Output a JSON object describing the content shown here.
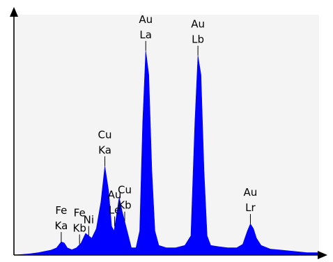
{
  "chart_data": {
    "type": "area",
    "title": "",
    "xlabel": "",
    "ylabel": "",
    "grid": false,
    "xlim": [
      0,
      100
    ],
    "ylim": [
      0,
      100
    ],
    "colors": {
      "plot_background": "#f4f4f4",
      "fill": "#0000ff",
      "axis": "#000000"
    },
    "series": [
      {
        "values": [
          [
            0,
            0
          ],
          [
            3,
            0.3
          ],
          [
            5,
            0.5
          ],
          [
            8,
            1
          ],
          [
            10,
            1.5
          ],
          [
            12,
            2
          ],
          [
            14,
            3
          ],
          [
            15.5,
            5.5
          ],
          [
            16.5,
            5
          ],
          [
            17.5,
            3
          ],
          [
            19,
            2.2
          ],
          [
            20.5,
            3
          ],
          [
            22,
            5
          ],
          [
            23.5,
            9
          ],
          [
            24.5,
            8
          ],
          [
            25.5,
            7
          ],
          [
            27,
            11
          ],
          [
            28.5,
            22
          ],
          [
            29.8,
            37
          ],
          [
            31,
            27
          ],
          [
            32,
            12
          ],
          [
            32.8,
            10
          ],
          [
            33.8,
            18
          ],
          [
            34.5,
            24
          ],
          [
            35.5,
            18
          ],
          [
            36.5,
            13
          ],
          [
            37.5,
            8
          ],
          [
            38.5,
            3
          ],
          [
            40,
            3
          ],
          [
            41.2,
            10
          ],
          [
            42.2,
            55
          ],
          [
            43.2,
            85
          ],
          [
            44.2,
            75
          ],
          [
            45.2,
            35
          ],
          [
            46.2,
            10
          ],
          [
            47.5,
            4
          ],
          [
            50,
            3
          ],
          [
            53,
            3
          ],
          [
            56,
            4
          ],
          [
            58,
            8
          ],
          [
            59.3,
            55
          ],
          [
            60.3,
            83
          ],
          [
            61.3,
            75
          ],
          [
            62.3,
            35
          ],
          [
            63.3,
            8
          ],
          [
            64.5,
            4
          ],
          [
            67,
            3.5
          ],
          [
            70,
            3
          ],
          [
            73,
            3
          ],
          [
            75,
            4.5
          ],
          [
            76.5,
            10
          ],
          [
            77.5,
            13
          ],
          [
            78.5,
            11
          ],
          [
            79.5,
            7
          ],
          [
            81,
            4
          ],
          [
            84,
            2.5
          ],
          [
            88,
            2
          ],
          [
            92,
            1.5
          ],
          [
            96,
            1
          ],
          [
            100,
            1
          ]
        ]
      }
    ],
    "annotations": [
      {
        "line1": "Fe",
        "line2": "Ka",
        "x": 15.5,
        "y": 5.5
      },
      {
        "line1": "Fe",
        "line2": "Kb",
        "x": 21.5,
        "y": 4.5
      },
      {
        "line1": "",
        "line2": "Ni",
        "x": 24.5,
        "y": 8
      },
      {
        "line1": "Cu",
        "line2": "Ka",
        "x": 29.8,
        "y": 37
      },
      {
        "line1": "Au",
        "line2": "Le",
        "x": 33,
        "y": 12
      },
      {
        "line1": "Cu",
        "line2": "Kb",
        "x": 36.3,
        "y": 14
      },
      {
        "line1": "Au",
        "line2": "La",
        "x": 43.2,
        "y": 85
      },
      {
        "line1": "Au",
        "line2": "Lb",
        "x": 60.3,
        "y": 83
      },
      {
        "line1": "Au",
        "line2": "Lr",
        "x": 77.5,
        "y": 13
      }
    ]
  }
}
